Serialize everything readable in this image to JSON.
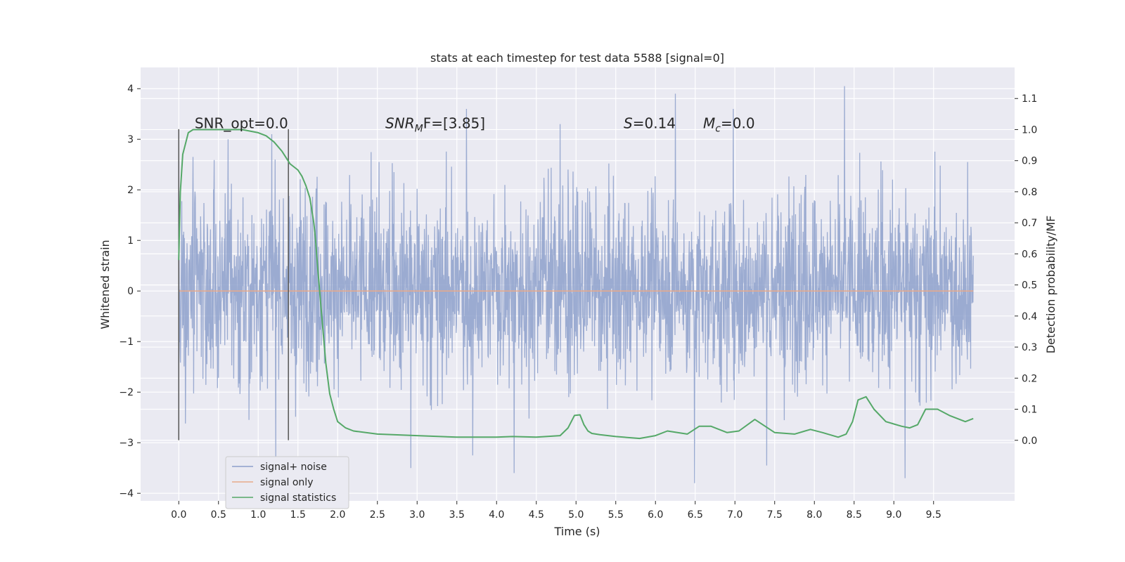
{
  "chart_data": {
    "type": "line",
    "title": "stats at each timestep for test data 5588 [signal=0]",
    "xlabel": "Time (s)",
    "ylabel": "Whitened strain",
    "ylabel_right": "Detection probability/MF",
    "xlim": [
      -0.48,
      10.52
    ],
    "ylim": [
      -4.15,
      4.42
    ],
    "ylim_right": [
      -0.195,
      1.2
    ],
    "x_ticks": [
      "0.0",
      "0.5",
      "1.0",
      "1.5",
      "2.0",
      "2.5",
      "3.0",
      "3.5",
      "4.0",
      "4.5",
      "5.0",
      "5.5",
      "6.0",
      "6.5",
      "7.0",
      "7.5",
      "8.0",
      "8.5",
      "9.0",
      "9.5"
    ],
    "x_tick_values": [
      0.0,
      0.5,
      1.0,
      1.5,
      2.0,
      2.5,
      3.0,
      3.5,
      4.0,
      4.5,
      5.0,
      5.5,
      6.0,
      6.5,
      7.0,
      7.5,
      8.0,
      8.5,
      9.0,
      9.5
    ],
    "y_ticks": [
      "4",
      "3",
      "2",
      "1",
      "0",
      "−1",
      "−2",
      "−3",
      "−4"
    ],
    "y_tick_values": [
      4,
      3,
      2,
      1,
      0,
      -1,
      -2,
      -3,
      -4
    ],
    "y_ticks_right": [
      "1.1",
      "1.0",
      "0.9",
      "0.8",
      "0.7",
      "0.6",
      "0.5",
      "0.4",
      "0.3",
      "0.2",
      "0.1",
      "0.0"
    ],
    "y_tick_values_right": [
      1.1,
      1.0,
      0.9,
      0.8,
      0.7,
      0.6,
      0.5,
      0.4,
      0.3,
      0.2,
      0.1,
      0.0
    ],
    "grid": true,
    "legend_position": "bottom-left",
    "series": [
      {
        "name": "signal+ noise",
        "color": "#8da0cb",
        "axis": "left",
        "kind": "noise",
        "x_range": [
          0.0,
          10.0
        ],
        "envelope_upper": [
          1.3,
          1.4,
          1.5,
          1.4,
          1.35,
          1.4,
          1.45,
          1.35,
          1.4,
          1.5,
          1.35,
          1.4,
          1.45,
          1.4,
          1.35,
          1.45,
          1.4,
          1.35,
          1.5,
          1.4,
          1.3
        ],
        "envelope_lower": [
          -1.2,
          -1.3,
          -1.25,
          -1.2,
          -1.3,
          -1.25,
          -1.3,
          -1.25,
          -1.2,
          -1.3,
          -1.25,
          -1.3,
          -1.2,
          -1.25,
          -1.3,
          -1.25,
          -1.2,
          -1.3,
          -1.25,
          -1.2,
          -1.25
        ],
        "notable_peaks": [
          [
            0.18,
            2.65
          ],
          [
            0.62,
            3.0
          ],
          [
            1.17,
            3.1
          ],
          [
            2.52,
            2.55
          ],
          [
            3.62,
            3.6
          ],
          [
            4.8,
            3.3
          ],
          [
            6.25,
            3.9
          ],
          [
            6.98,
            3.6
          ],
          [
            8.38,
            4.05
          ],
          [
            9.93,
            2.55
          ]
        ],
        "notable_troughs": [
          [
            1.22,
            -3.35
          ],
          [
            2.92,
            -3.5
          ],
          [
            3.7,
            -3.25
          ],
          [
            4.22,
            -3.6
          ],
          [
            6.49,
            -3.8
          ],
          [
            7.4,
            -3.45
          ],
          [
            9.14,
            -3.7
          ]
        ]
      },
      {
        "name": "signal only",
        "color": "#e8a98a",
        "axis": "left",
        "x": [
          0.0,
          10.0
        ],
        "y": [
          0.0,
          0.0
        ]
      },
      {
        "name": "signal statistics",
        "color": "#55a868",
        "axis": "right",
        "x": [
          0.0,
          0.02,
          0.05,
          0.08,
          0.12,
          0.18,
          0.3,
          0.5,
          0.8,
          1.0,
          1.1,
          1.2,
          1.3,
          1.4,
          1.5,
          1.55,
          1.6,
          1.65,
          1.7,
          1.72,
          1.75,
          1.8,
          1.85,
          1.9,
          1.95,
          2.0,
          2.1,
          2.2,
          2.5,
          3.0,
          3.5,
          4.0,
          4.2,
          4.5,
          4.8,
          4.9,
          4.98,
          5.05,
          5.1,
          5.15,
          5.2,
          5.3,
          5.5,
          5.8,
          6.0,
          6.15,
          6.4,
          6.55,
          6.7,
          6.9,
          7.05,
          7.25,
          7.5,
          7.75,
          7.95,
          8.1,
          8.3,
          8.4,
          8.48,
          8.55,
          8.65,
          8.75,
          8.9,
          9.1,
          9.2,
          9.3,
          9.4,
          9.55,
          9.7,
          9.9,
          10.0
        ],
        "y": [
          0.58,
          0.8,
          0.92,
          0.95,
          0.99,
          1.0,
          1.0,
          1.0,
          1.0,
          0.99,
          0.98,
          0.96,
          0.93,
          0.89,
          0.87,
          0.85,
          0.82,
          0.78,
          0.7,
          0.65,
          0.55,
          0.4,
          0.25,
          0.15,
          0.1,
          0.06,
          0.04,
          0.03,
          0.02,
          0.015,
          0.01,
          0.01,
          0.012,
          0.01,
          0.015,
          0.04,
          0.08,
          0.082,
          0.05,
          0.03,
          0.022,
          0.018,
          0.012,
          0.006,
          0.015,
          0.03,
          0.02,
          0.045,
          0.045,
          0.025,
          0.03,
          0.067,
          0.025,
          0.02,
          0.035,
          0.025,
          0.01,
          0.02,
          0.06,
          0.13,
          0.14,
          0.1,
          0.06,
          0.045,
          0.04,
          0.05,
          0.1,
          0.1,
          0.08,
          0.06,
          0.07
        ]
      }
    ],
    "vlines": [
      {
        "x": 0.0,
        "ymin": -2.95,
        "ymax": 3.2,
        "color": "#555555"
      },
      {
        "x": 1.38,
        "ymin": -2.95,
        "ymax": 3.2,
        "color": "#555555"
      }
    ],
    "annotations": [
      {
        "text": "SNR_opt=0.0",
        "x": 0.2,
        "y": 3.22
      },
      {
        "text_main": "SNR",
        "text_sub": "M",
        "text_after": "F=[3.85]",
        "x": 2.6,
        "y": 3.22
      },
      {
        "text_main": "S",
        "text_after": "=0.14",
        "x": 5.6,
        "y": 3.22
      },
      {
        "text_main": "M",
        "text_sub": "c",
        "text_after": "=0.0",
        "x": 6.6,
        "y": 3.22
      }
    ]
  }
}
